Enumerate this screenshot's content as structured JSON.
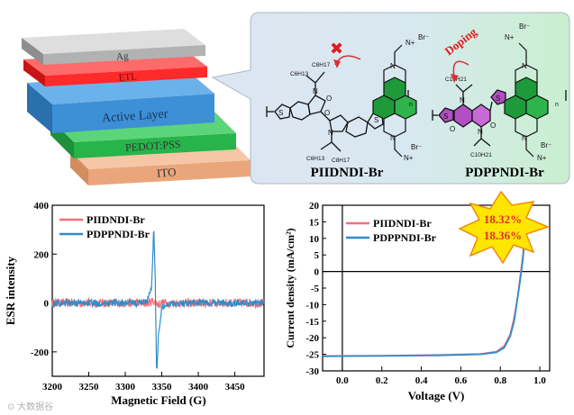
{
  "device_stack": {
    "layers": [
      {
        "label": "Ag",
        "color": "#bdbdbd"
      },
      {
        "label": "ETL",
        "color": "#ff2a2a"
      },
      {
        "label": "Active Layer",
        "color": "#3d8fd6"
      },
      {
        "label": "PEDOT:PSS",
        "color": "#27b44a"
      },
      {
        "label": "ITO",
        "color": "#f2b48c"
      }
    ]
  },
  "molecules": {
    "left_name": "PIIDNDI-Br",
    "right_name": "PDPPNDI-Br",
    "doping_label": "Doping",
    "cross_mark": "✖",
    "atoms": {
      "n": "N",
      "o": "O",
      "n_plus": "N+",
      "br": "Br⁻",
      "s": "S",
      "subscript_n": "n"
    },
    "chains": {
      "c8": "C8H17",
      "c6": "C6H13",
      "c10": "C10H21"
    }
  },
  "esr_panel": {
    "chart_data": {
      "type": "line",
      "xlabel": "Magnetic Field (G)",
      "ylabel": "ESR intensity",
      "xlim": [
        3200,
        3490
      ],
      "ylim": [
        -300,
        400
      ],
      "xticks": [
        "3200",
        "3250",
        "3300",
        "3350",
        "3400",
        "3450"
      ],
      "yticks": [
        "400",
        "200",
        "0",
        "-200"
      ],
      "series": [
        {
          "name": "PIIDNDI-Br",
          "color": "#f0707a",
          "noise": 18,
          "x": [
            3200,
            3330,
            3335,
            3340,
            3345,
            3350,
            3490
          ],
          "y": [
            0,
            0,
            5,
            8,
            -5,
            0,
            0
          ]
        },
        {
          "name": "PDPPNDI-Br",
          "color": "#2f8cc8",
          "noise": 14,
          "x": [
            3200,
            3320,
            3330,
            3336,
            3339,
            3341,
            3343,
            3345,
            3350,
            3360,
            3490
          ],
          "y": [
            0,
            0,
            10,
            60,
            310,
            100,
            -290,
            -150,
            -20,
            0,
            0
          ]
        }
      ]
    }
  },
  "jv_panel": {
    "chart_data": {
      "type": "line",
      "xlabel": "Voltage (V)",
      "ylabel": "Current density (mA/cm²)",
      "xlim": [
        -0.1,
        1.05
      ],
      "ylim": [
        -30,
        20
      ],
      "xticks": [
        "0.0",
        "0.2",
        "0.4",
        "0.6",
        "0.8",
        "1.0"
      ],
      "yticks": [
        "20",
        "15",
        "10",
        "5",
        "0",
        "-5",
        "-10",
        "-15",
        "-20",
        "-25",
        "-30"
      ],
      "series": [
        {
          "name": "PIIDNDI-Br",
          "color": "#f0707a",
          "x": [
            -0.1,
            0.2,
            0.5,
            0.7,
            0.78,
            0.82,
            0.85,
            0.87,
            0.89,
            0.9,
            0.915,
            0.93
          ],
          "y": [
            -25.5,
            -25.4,
            -25.2,
            -24.9,
            -24.2,
            -22.5,
            -19,
            -14,
            -7,
            -2,
            5,
            15
          ]
        },
        {
          "name": "PDPPNDI-Br",
          "color": "#2f8cc8",
          "x": [
            -0.1,
            0.2,
            0.5,
            0.7,
            0.78,
            0.82,
            0.85,
            0.87,
            0.885,
            0.9,
            0.915,
            0.93
          ],
          "y": [
            -25.6,
            -25.5,
            -25.3,
            -25,
            -24.4,
            -23,
            -19.5,
            -15,
            -9,
            -3,
            4,
            15
          ]
        }
      ]
    },
    "starburst": {
      "pce_a": "18.32%",
      "pce_b": "18.36%",
      "fill": "#ffe600"
    }
  },
  "watermark": "⊙ 大数据谷"
}
